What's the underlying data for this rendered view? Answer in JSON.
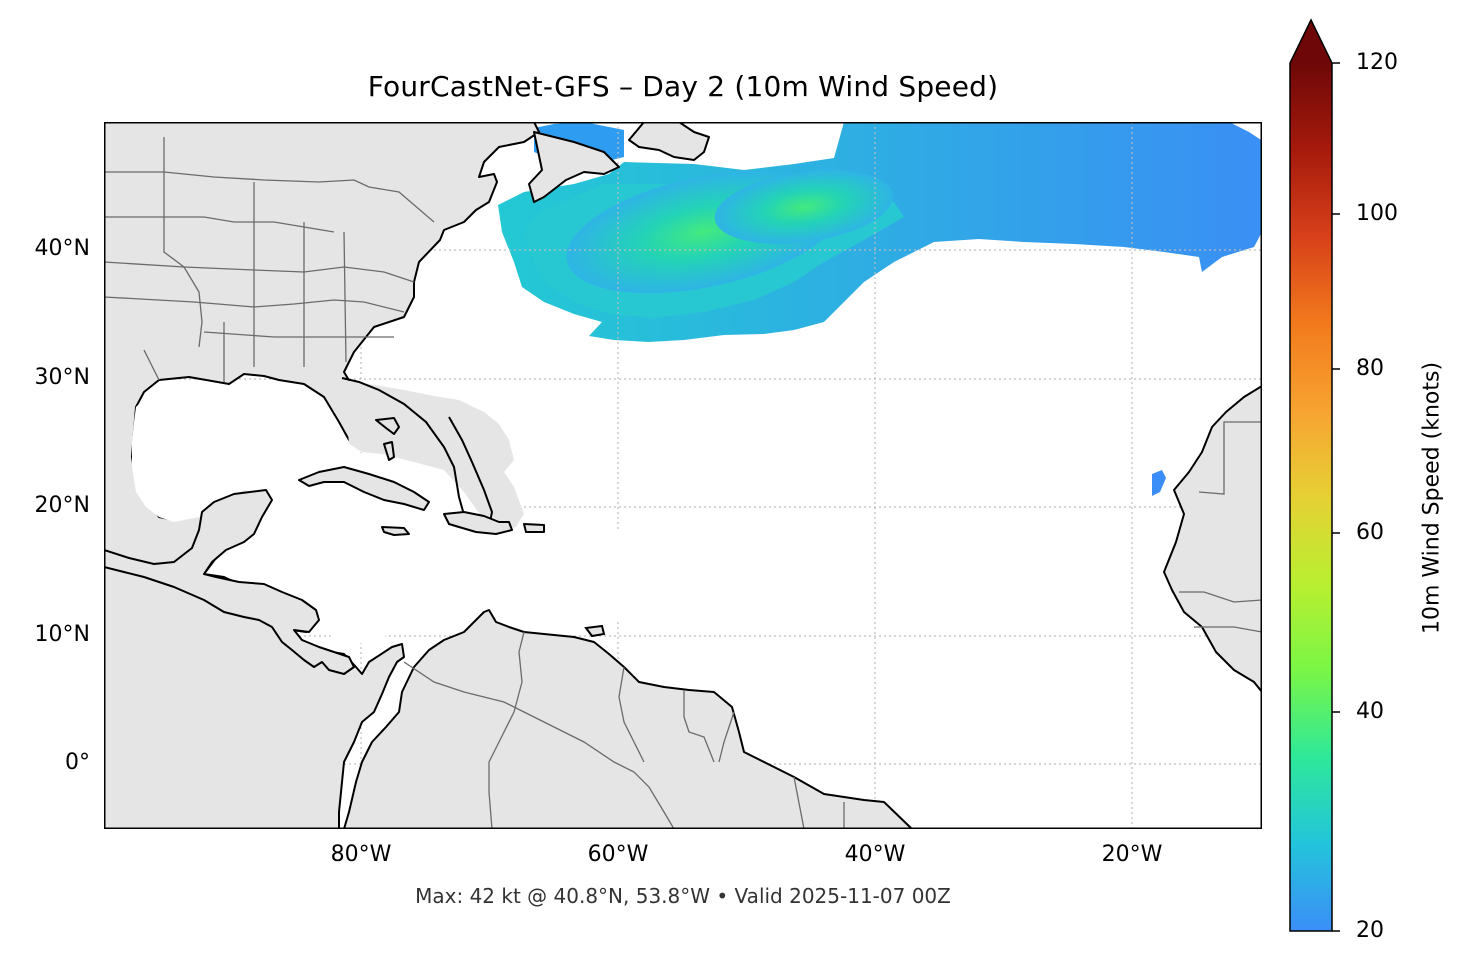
{
  "title": "FourCastNet-GFS – Day 2 (10m Wind Speed)",
  "footer": "Max: 42 kt @ 40.8°N, 53.8°W • Valid 2025-11-07 00Z",
  "map": {
    "lat_labels": [
      "40°N",
      "30°N",
      "20°N",
      "10°N",
      "0°"
    ],
    "lon_labels": [
      "80°W",
      "60°W",
      "40°W",
      "20°W"
    ],
    "land_color": "#e5e5e5",
    "coast_color": "#000000",
    "border_color": "#6b6b6b",
    "grid_color": "#bdbdbd"
  },
  "colorbar": {
    "label": "10m Wind Speed (knots)",
    "ticks": [
      "120",
      "100",
      "80",
      "60",
      "40",
      "20"
    ],
    "min": 20,
    "max": 120,
    "extend": "max",
    "colors": [
      "#3b8ef7",
      "#23c4db",
      "#2ee89a",
      "#7af646",
      "#c9e634",
      "#f7b636",
      "#f27a1c",
      "#d7401a",
      "#a61a0c",
      "#6e0808"
    ]
  }
}
